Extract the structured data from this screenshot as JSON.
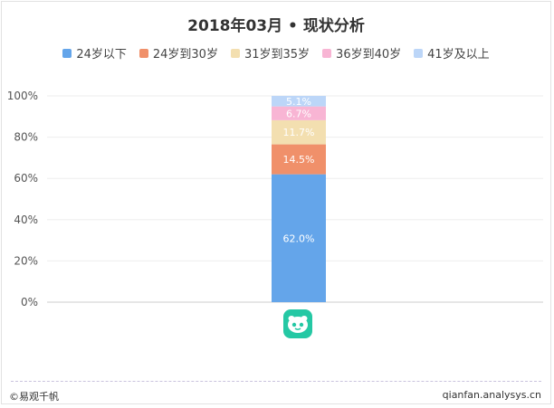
{
  "chart_data": {
    "type": "bar",
    "stacked": true,
    "title": "2018年03月 • 现状分析",
    "categories": [
      ""
    ],
    "series": [
      {
        "name": "24岁以下",
        "values": [
          62.0
        ],
        "label": "62.0%",
        "color": "#64a5ea"
      },
      {
        "name": "24岁到30岁",
        "values": [
          14.5
        ],
        "label": "14.5%",
        "color": "#f0906a"
      },
      {
        "name": "31岁到35岁",
        "values": [
          11.7
        ],
        "label": "11.7%",
        "color": "#f3dfb0"
      },
      {
        "name": "36岁到40岁",
        "values": [
          6.7
        ],
        "label": "6.7%",
        "color": "#f8b5d4"
      },
      {
        "name": "41岁及以上",
        "values": [
          5.1
        ],
        "label": "5.1%",
        "color": "#bcd6f8"
      }
    ],
    "yticks": [
      "0%",
      "20%",
      "40%",
      "60%",
      "80%",
      "100%"
    ],
    "ylim": [
      0,
      100
    ],
    "grid": true,
    "legend": "top"
  },
  "footer": {
    "brand": "©易观千帆",
    "site": "qianfan.analysys.cn"
  },
  "icons": {
    "category_icon": "app-logo-icon"
  }
}
